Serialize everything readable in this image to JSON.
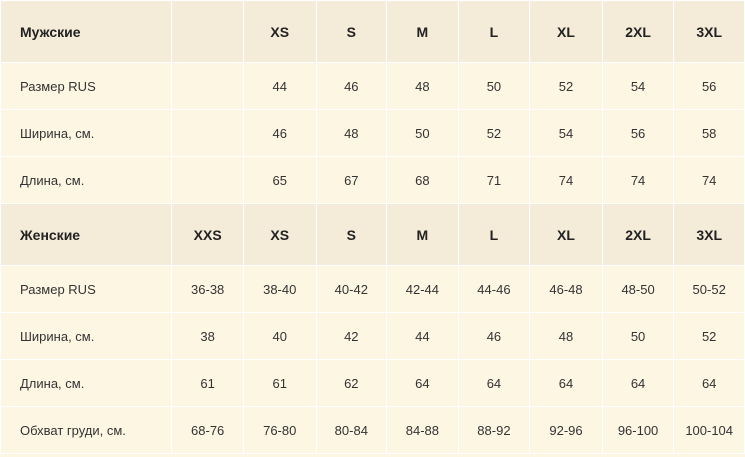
{
  "men": {
    "title": "Мужские",
    "sizes": [
      "",
      "XS",
      "S",
      "M",
      "L",
      "XL",
      "2XL",
      "3XL"
    ],
    "rows": [
      {
        "label": "Размер RUS",
        "values": [
          "",
          "44",
          "46",
          "48",
          "50",
          "52",
          "54",
          "56"
        ]
      },
      {
        "label": "Ширина, см.",
        "values": [
          "",
          "46",
          "48",
          "50",
          "52",
          "54",
          "56",
          "58"
        ]
      },
      {
        "label": "Длина, см.",
        "values": [
          "",
          "65",
          "67",
          "68",
          "71",
          "74",
          "74",
          "74"
        ]
      }
    ]
  },
  "women": {
    "title": "Женские",
    "sizes": [
      "XXS",
      "XS",
      "S",
      "M",
      "L",
      "XL",
      "2XL",
      "3XL"
    ],
    "rows": [
      {
        "label": "Размер RUS",
        "values": [
          "36-38",
          "38-40",
          "40-42",
          "42-44",
          "44-46",
          "46-48",
          "48-50",
          "50-52"
        ]
      },
      {
        "label": "Ширина, см.",
        "values": [
          "38",
          "40",
          "42",
          "44",
          "46",
          "48",
          "50",
          "52"
        ]
      },
      {
        "label": "Длина, см.",
        "values": [
          "61",
          "61",
          "62",
          "64",
          "64",
          "64",
          "64",
          "64"
        ]
      },
      {
        "label": "Обхват груди, см.",
        "values": [
          "68-76",
          "76-80",
          "80-84",
          "84-88",
          "88-92",
          "92-96",
          "96-100",
          "100-104"
        ]
      }
    ]
  }
}
